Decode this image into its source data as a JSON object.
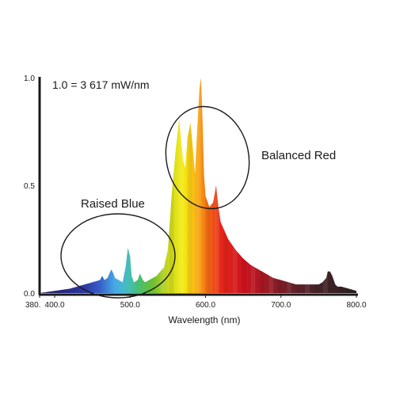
{
  "chart_data": {
    "type": "area",
    "title": "",
    "note": "1.0 = 3 617 mW/nm",
    "xlabel": "Wavelength (nm)",
    "ylabel": "",
    "xlim": [
      380,
      800
    ],
    "ylim": [
      0,
      1.0
    ],
    "x_ticks": [
      {
        "value": 380,
        "label": "380."
      },
      {
        "value": 400,
        "label": "400.0"
      },
      {
        "value": 500,
        "label": "500.0"
      },
      {
        "value": 600,
        "label": "600.0"
      },
      {
        "value": 700,
        "label": "700.0"
      },
      {
        "value": 800,
        "label": "800.0"
      }
    ],
    "y_ticks": [
      {
        "value": 0,
        "label": "0.0"
      },
      {
        "value": 0.5,
        "label": "0.5"
      },
      {
        "value": 1.0,
        "label": "1.0"
      }
    ],
    "series": [
      {
        "x": [
          380,
          400,
          420,
          440,
          450,
          460,
          463,
          466,
          470,
          475,
          478,
          480,
          485,
          490,
          494,
          497,
          500,
          502,
          505,
          510,
          513,
          517,
          520,
          525,
          530,
          535,
          540,
          545,
          550,
          555,
          560,
          565,
          570,
          573,
          576,
          580,
          584,
          586,
          588,
          592,
          594,
          596,
          598,
          600,
          605,
          610,
          614,
          617,
          620,
          630,
          640,
          650,
          660,
          670,
          680,
          690,
          700,
          710,
          720,
          730,
          740,
          750,
          755,
          760,
          762,
          765,
          768,
          772,
          775,
          780,
          790,
          800
        ],
        "y": [
          0.0,
          0.01,
          0.02,
          0.04,
          0.05,
          0.06,
          0.08,
          0.06,
          0.07,
          0.11,
          0.09,
          0.07,
          0.06,
          0.05,
          0.12,
          0.21,
          0.17,
          0.08,
          0.05,
          0.06,
          0.09,
          0.06,
          0.05,
          0.06,
          0.07,
          0.08,
          0.1,
          0.12,
          0.2,
          0.45,
          0.65,
          0.81,
          0.62,
          0.58,
          0.72,
          0.79,
          0.64,
          0.55,
          0.7,
          0.95,
          1.0,
          0.8,
          0.55,
          0.45,
          0.4,
          0.42,
          0.5,
          0.4,
          0.33,
          0.25,
          0.2,
          0.16,
          0.13,
          0.11,
          0.09,
          0.07,
          0.06,
          0.05,
          0.04,
          0.04,
          0.04,
          0.04,
          0.05,
          0.07,
          0.1,
          0.1,
          0.08,
          0.04,
          0.03,
          0.03,
          0.02,
          0.01
        ]
      }
    ],
    "annotations": [
      {
        "text": "Raised Blue"
      },
      {
        "text": "Balanced Red"
      }
    ],
    "grid": false,
    "legend": "none"
  }
}
